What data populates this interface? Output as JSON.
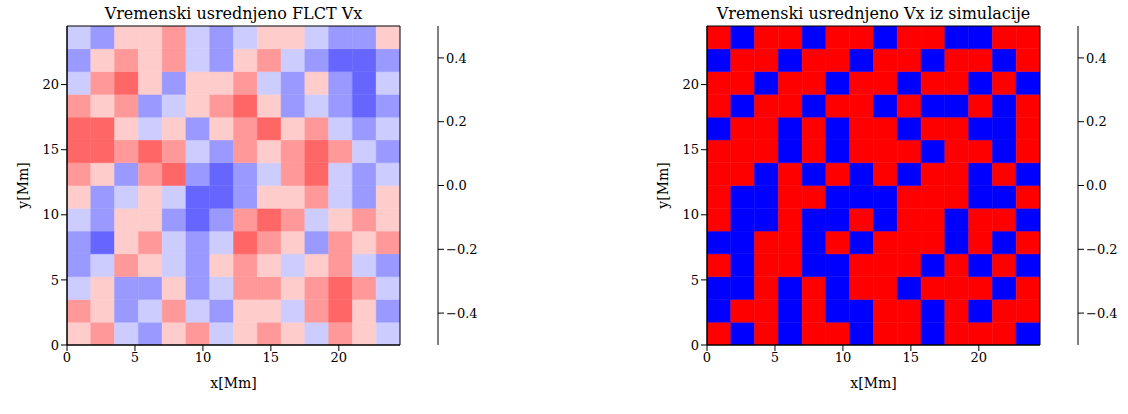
{
  "chart_data": [
    {
      "type": "heatmap",
      "title": "Vremenski usrednjeno FLCT Vx",
      "x_label": "x[Mm]",
      "y_label": "y[Mm]",
      "xlim": [
        0,
        24.5
      ],
      "ylim": [
        0,
        24.5
      ],
      "xticks": [
        0,
        5,
        10,
        15,
        20
      ],
      "yticks": [
        0,
        5,
        10,
        15,
        20
      ],
      "x_edges": [
        0,
        1.75,
        3.5,
        5.25,
        7,
        8.75,
        10.5,
        12.25,
        14,
        15.75,
        17.5,
        19.25,
        21,
        22.75,
        24.5
      ],
      "y_edges": [
        0,
        1.75,
        3.5,
        5.25,
        7,
        8.75,
        10.5,
        12.25,
        14,
        15.75,
        17.5,
        19.25,
        21,
        22.75,
        24.5
      ],
      "cells": [
        [
          0.1,
          0.2,
          -0.1,
          -0.2,
          0.1,
          0.2,
          -0.1,
          0.1,
          0.2,
          0.1,
          -0.1,
          0.2,
          0.1,
          -0.1
        ],
        [
          0.2,
          0.1,
          -0.2,
          -0.1,
          0.2,
          -0.1,
          -0.2,
          0.1,
          0.1,
          -0.1,
          0.2,
          0.3,
          0.1,
          -0.2
        ],
        [
          -0.1,
          0.1,
          -0.2,
          -0.2,
          0.1,
          -0.2,
          -0.1,
          0.2,
          0.2,
          0.1,
          0.2,
          0.3,
          0.2,
          -0.1
        ],
        [
          -0.2,
          -0.1,
          0.2,
          0.1,
          -0.1,
          -0.2,
          0.1,
          0.2,
          0.1,
          -0.1,
          0.1,
          0.2,
          -0.1,
          -0.2
        ],
        [
          -0.2,
          -0.3,
          0.1,
          0.2,
          -0.1,
          -0.2,
          -0.1,
          0.3,
          0.2,
          0.1,
          -0.2,
          0.2,
          0.1,
          0.2
        ],
        [
          -0.1,
          -0.2,
          0.1,
          0.1,
          -0.2,
          -0.3,
          -0.2,
          0.2,
          0.3,
          0.2,
          -0.1,
          0.1,
          0.2,
          0.1
        ],
        [
          0.1,
          -0.2,
          -0.1,
          0.1,
          -0.1,
          -0.3,
          -0.3,
          -0.2,
          0.1,
          0.1,
          0.2,
          -0.1,
          -0.2,
          0.1
        ],
        [
          0.2,
          0.1,
          -0.2,
          0.2,
          0.3,
          -0.2,
          -0.3,
          -0.2,
          -0.1,
          0.2,
          0.3,
          -0.1,
          -0.2,
          -0.1
        ],
        [
          0.3,
          0.3,
          0.2,
          0.3,
          0.2,
          -0.1,
          -0.2,
          0.2,
          0.1,
          0.2,
          0.3,
          0.2,
          -0.1,
          -0.2
        ],
        [
          0.3,
          0.3,
          0.1,
          -0.1,
          0.1,
          -0.2,
          0.1,
          0.2,
          0.3,
          0.1,
          0.2,
          -0.1,
          -0.2,
          -0.1
        ],
        [
          0.2,
          0.1,
          0.2,
          -0.2,
          -0.1,
          0.1,
          0.2,
          0.3,
          0.1,
          -0.2,
          -0.1,
          -0.2,
          -0.3,
          -0.2
        ],
        [
          -0.1,
          0.2,
          0.3,
          0.1,
          -0.2,
          0.1,
          0.1,
          0.2,
          -0.1,
          -0.2,
          0.1,
          -0.2,
          -0.3,
          -0.1
        ],
        [
          -0.2,
          0.1,
          0.2,
          0.1,
          0.2,
          -0.1,
          -0.2,
          0.1,
          0.2,
          -0.1,
          -0.2,
          -0.3,
          -0.3,
          -0.2
        ],
        [
          -0.1,
          -0.2,
          0.1,
          0.1,
          0.2,
          -0.1,
          -0.2,
          -0.1,
          0.1,
          0.1,
          -0.1,
          -0.2,
          -0.2,
          0.1
        ]
      ],
      "colorbar_range": [
        -0.5,
        0.5
      ],
      "colorbar_ticks": [
        {
          "value": -0.4,
          "label": "−0.4"
        },
        {
          "value": -0.2,
          "label": "−0.2"
        },
        {
          "value": 0,
          "label": "0.0"
        },
        0.2,
        0.4
      ]
    },
    {
      "type": "heatmap",
      "title": "Vremenski usrednjeno Vx iz simulacije",
      "x_label": "x[Mm]",
      "y_label": "y[Mm]",
      "xlim": [
        0,
        24.5
      ],
      "ylim": [
        0,
        24.5
      ],
      "xticks": [
        0,
        5,
        10,
        15,
        20
      ],
      "yticks": [
        0,
        5,
        10,
        15,
        20
      ],
      "x_edges": [
        0,
        1.75,
        3.5,
        5.25,
        7,
        8.75,
        10.5,
        12.25,
        14,
        15.75,
        17.5,
        19.25,
        21,
        22.75,
        24.5
      ],
      "y_edges": [
        0,
        1.75,
        3.5,
        5.25,
        7,
        8.75,
        10.5,
        12.25,
        14,
        15.75,
        17.5,
        19.25,
        21,
        22.75,
        24.5
      ],
      "cells": [
        [
          0.8,
          -0.8,
          0.7,
          -0.7,
          0.8,
          0.9,
          -0.8,
          0.8,
          0.7,
          -0.8,
          0.8,
          0.7,
          0.9,
          -0.7
        ],
        [
          -0.7,
          0.8,
          0.9,
          -0.8,
          0.7,
          -0.8,
          -0.9,
          0.8,
          0.7,
          -0.7,
          0.8,
          -0.8,
          0.7,
          0.8
        ],
        [
          -0.8,
          -0.7,
          0.8,
          -0.9,
          0.8,
          -0.7,
          0.8,
          0.9,
          -0.8,
          0.7,
          0.8,
          0.7,
          -0.8,
          0.7
        ],
        [
          0.8,
          -0.8,
          0.7,
          0.8,
          -0.7,
          -0.8,
          0.7,
          0.8,
          0.9,
          -0.8,
          0.7,
          -0.7,
          0.8,
          -0.8
        ],
        [
          -0.8,
          -0.9,
          0.7,
          0.8,
          -0.8,
          0.7,
          -0.8,
          0.9,
          0.8,
          0.7,
          -0.8,
          0.8,
          -0.7,
          0.8
        ],
        [
          0.7,
          -0.8,
          -0.7,
          0.8,
          -0.9,
          -0.8,
          0.8,
          -0.7,
          0.8,
          0.9,
          -0.8,
          0.7,
          0.8,
          -0.8
        ],
        [
          0.8,
          -0.7,
          -0.8,
          0.9,
          0.7,
          -0.8,
          -0.9,
          -0.8,
          0.7,
          0.8,
          0.9,
          -0.7,
          -0.8,
          0.7
        ],
        [
          0.9,
          0.8,
          -0.7,
          0.8,
          -0.8,
          0.7,
          -0.8,
          0.7,
          -0.8,
          0.7,
          0.8,
          -0.9,
          0.7,
          -0.8
        ],
        [
          0.8,
          0.9,
          0.7,
          -0.8,
          0.8,
          -0.7,
          0.8,
          0.9,
          0.7,
          -0.8,
          0.7,
          0.8,
          -0.7,
          0.8
        ],
        [
          -0.8,
          0.7,
          0.8,
          -0.7,
          0.9,
          -0.8,
          0.7,
          0.8,
          -0.9,
          0.7,
          0.8,
          -0.8,
          -0.7,
          0.7
        ],
        [
          0.7,
          -0.8,
          0.8,
          0.9,
          -0.7,
          0.8,
          0.7,
          -0.8,
          0.8,
          -0.9,
          -0.7,
          0.8,
          -0.8,
          0.9
        ],
        [
          0.8,
          0.7,
          -0.9,
          0.8,
          0.7,
          -0.8,
          0.8,
          0.7,
          -0.7,
          0.8,
          0.9,
          -0.8,
          0.7,
          -0.7
        ],
        [
          -0.7,
          0.8,
          0.8,
          -0.8,
          0.9,
          0.7,
          -0.8,
          0.8,
          0.7,
          -0.8,
          0.7,
          0.8,
          -0.9,
          0.8
        ],
        [
          0.8,
          -0.8,
          0.7,
          0.9,
          -0.7,
          0.8,
          0.8,
          -0.7,
          0.8,
          0.7,
          -0.8,
          -0.7,
          0.8,
          0.7
        ]
      ],
      "colorbar_range": [
        -0.5,
        0.5
      ],
      "colorbar_ticks": [
        {
          "value": -0.4,
          "label": "−0.4"
        },
        {
          "value": -0.2,
          "label": "−0.2"
        },
        {
          "value": 0,
          "label": "0.0"
        },
        0.2,
        0.4
      ]
    }
  ]
}
